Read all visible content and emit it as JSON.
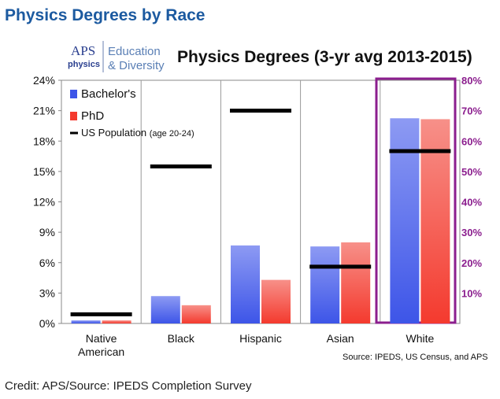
{
  "page": {
    "title": "Physics Degrees by Race",
    "credit": "Credit: APS/Source: IPEDS Completion Survey"
  },
  "logo": {
    "aps": "APS",
    "physics": "physics",
    "line1": "Education",
    "line2": "& Diversity"
  },
  "chart_data": {
    "type": "bar",
    "title": "Physics Degrees (3-yr avg 2013-2015)",
    "source": "Source: IPEDS, US Census, and APS",
    "categories": [
      "Native American",
      "Black",
      "Hispanic",
      "Asian",
      "White"
    ],
    "category_lines": [
      [
        "Native",
        "American"
      ],
      [
        "Black"
      ],
      [
        "Hispanic"
      ],
      [
        "Asian"
      ],
      [
        "White"
      ]
    ],
    "series": [
      {
        "name": "Bachelor's",
        "values": [
          0.3,
          2.7,
          7.7,
          7.6,
          67.5
        ],
        "color": "#3d55e8"
      },
      {
        "name": "PhD",
        "values": [
          0.3,
          1.8,
          4.3,
          8.0,
          67.2
        ],
        "color": "#f43a2e"
      }
    ],
    "us_population": {
      "name": "US Population",
      "name_suffix": "(age 20-24)",
      "values": [
        0.9,
        15.5,
        21.0,
        5.6,
        56.7
      ],
      "color": "#000000"
    },
    "left_axis": {
      "ylim": [
        0,
        24
      ],
      "ticks": [
        "0%",
        "3%",
        "6%",
        "9%",
        "12%",
        "15%",
        "18%",
        "21%",
        "24%"
      ]
    },
    "right_axis": {
      "applies_to": "White",
      "ylim": [
        0,
        80
      ],
      "ticks": [
        "10%",
        "20%",
        "30%",
        "40%",
        "50%",
        "60%",
        "70%",
        "80%"
      ],
      "color": "#8b1e8e"
    },
    "grid": false,
    "legend_position": "top-left"
  }
}
